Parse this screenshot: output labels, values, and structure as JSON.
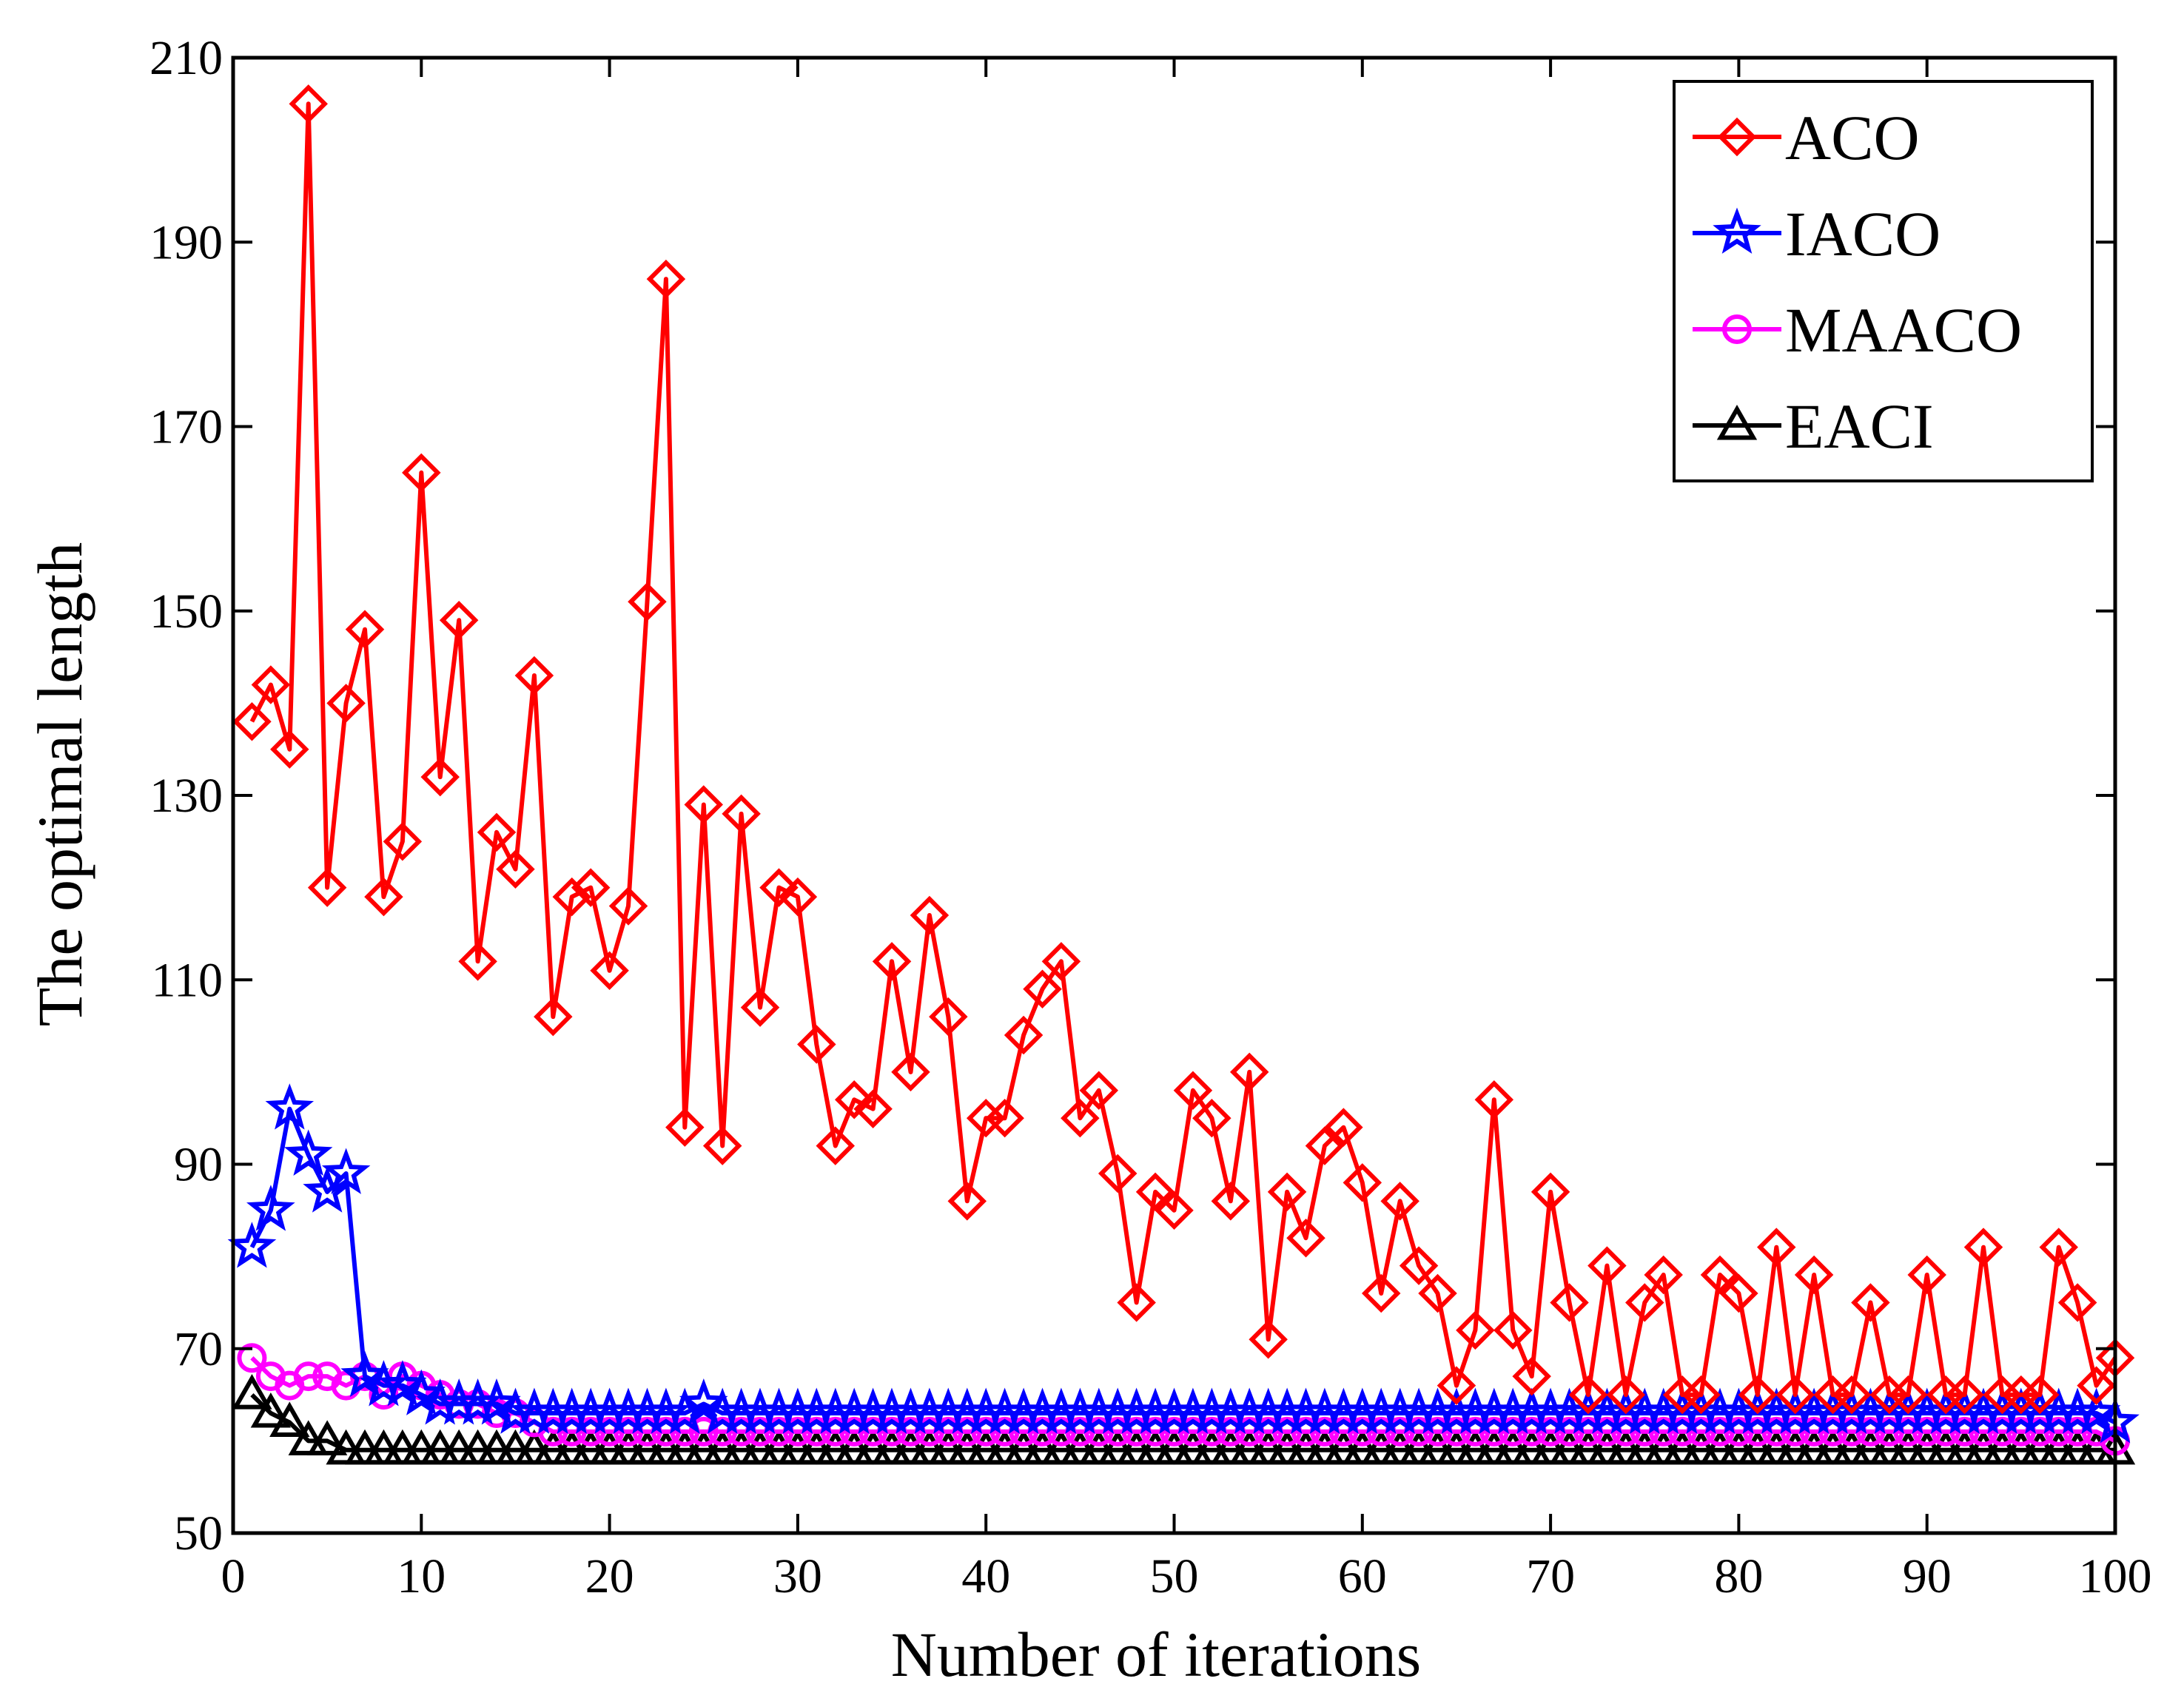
{
  "chart_data": {
    "type": "line",
    "title": "",
    "xlabel": "Number of iterations",
    "ylabel": "The optimal length",
    "xlim": [
      0,
      100
    ],
    "ylim": [
      50,
      210
    ],
    "xticks": [
      0,
      10,
      20,
      30,
      40,
      50,
      60,
      70,
      80,
      90,
      100
    ],
    "yticks": [
      50,
      70,
      90,
      110,
      130,
      150,
      170,
      190,
      210
    ],
    "grid": false,
    "legend_position": "top-right",
    "series": [
      {
        "name": "ACO",
        "color": "#ff0000",
        "marker": "diamond",
        "x": [
          1,
          2,
          3,
          4,
          5,
          6,
          7,
          8,
          9,
          10,
          11,
          12,
          13,
          14,
          15,
          16,
          17,
          18,
          19,
          20,
          21,
          22,
          23,
          24,
          25,
          26,
          27,
          28,
          29,
          30,
          31,
          32,
          33,
          34,
          35,
          36,
          37,
          38,
          39,
          40,
          41,
          42,
          43,
          44,
          45,
          46,
          47,
          48,
          49,
          50,
          51,
          52,
          53,
          54,
          55,
          56,
          57,
          58,
          59,
          60,
          61,
          62,
          63,
          64,
          65,
          66,
          67,
          68,
          69,
          70,
          71,
          72,
          73,
          74,
          75,
          76,
          77,
          78,
          79,
          80,
          81,
          82,
          83,
          84,
          85,
          86,
          87,
          88,
          89,
          90,
          91,
          92,
          93,
          94,
          95,
          96,
          97,
          98,
          99,
          100
        ],
        "values": [
          138,
          142,
          135,
          205,
          120,
          140,
          148,
          119,
          125,
          165,
          132,
          149,
          112,
          126,
          122,
          143,
          106,
          119,
          120,
          111,
          118,
          151,
          186,
          94,
          129,
          92,
          128,
          107,
          120,
          119,
          103,
          92,
          97,
          96,
          112,
          100,
          117,
          106,
          86,
          95,
          95,
          104,
          109,
          112,
          95,
          98,
          89,
          75,
          87,
          85,
          98,
          95,
          86,
          100,
          71,
          87,
          82,
          92,
          94,
          88,
          76,
          86,
          79,
          76,
          66,
          72,
          97,
          72,
          67,
          87,
          75,
          65,
          79,
          65,
          75,
          78,
          65,
          65,
          78,
          76,
          65,
          81,
          65,
          78,
          65,
          65,
          75,
          65,
          65,
          78,
          65,
          65,
          81,
          65,
          65,
          65,
          81,
          75,
          66,
          69
        ]
      },
      {
        "name": "IACO",
        "color": "#0000ff",
        "marker": "star",
        "x": [
          1,
          2,
          3,
          4,
          5,
          6,
          7,
          8,
          9,
          10,
          11,
          12,
          13,
          14,
          15,
          16,
          17,
          18,
          19,
          20,
          21,
          22,
          23,
          24,
          25,
          26,
          27,
          28,
          29,
          30,
          31,
          32,
          33,
          34,
          35,
          36,
          37,
          38,
          39,
          40,
          41,
          42,
          43,
          44,
          45,
          46,
          47,
          48,
          49,
          50,
          51,
          52,
          53,
          54,
          55,
          56,
          57,
          58,
          59,
          60,
          61,
          62,
          63,
          64,
          65,
          66,
          67,
          68,
          69,
          70,
          71,
          72,
          73,
          74,
          75,
          76,
          77,
          78,
          79,
          80,
          81,
          82,
          83,
          84,
          85,
          86,
          87,
          88,
          89,
          90,
          91,
          92,
          93,
          94,
          95,
          96,
          97,
          98,
          99,
          100
        ],
        "values": [
          81,
          85,
          96,
          91,
          87,
          89,
          67,
          66,
          66,
          65,
          64,
          64,
          64,
          64,
          63,
          63,
          63,
          63,
          63,
          63,
          63,
          63,
          63,
          63,
          64,
          63,
          63,
          63,
          63,
          63,
          63,
          63,
          63,
          63,
          63,
          63,
          63,
          63,
          63,
          63,
          63,
          63,
          63,
          63,
          63,
          63,
          63,
          63,
          63,
          63,
          63,
          63,
          63,
          63,
          63,
          63,
          63,
          63,
          63,
          63,
          63,
          63,
          63,
          63,
          63,
          63,
          63,
          63,
          63,
          63,
          63,
          63,
          63,
          63,
          63,
          63,
          63,
          63,
          63,
          63,
          63,
          63,
          63,
          63,
          63,
          63,
          63,
          63,
          63,
          63,
          63,
          63,
          63,
          63,
          63,
          63,
          63,
          63,
          63,
          62
        ]
      },
      {
        "name": "MAACO",
        "color": "#ff00ff",
        "marker": "circle",
        "x": [
          1,
          2,
          3,
          4,
          5,
          6,
          7,
          8,
          9,
          10,
          11,
          12,
          13,
          14,
          15,
          16,
          17,
          18,
          19,
          20,
          21,
          22,
          23,
          24,
          25,
          26,
          27,
          28,
          29,
          30,
          31,
          32,
          33,
          34,
          35,
          36,
          37,
          38,
          39,
          40,
          41,
          42,
          43,
          44,
          45,
          46,
          47,
          48,
          49,
          50,
          51,
          52,
          53,
          54,
          55,
          56,
          57,
          58,
          59,
          60,
          61,
          62,
          63,
          64,
          65,
          66,
          67,
          68,
          69,
          70,
          71,
          72,
          73,
          74,
          75,
          76,
          77,
          78,
          79,
          80,
          81,
          82,
          83,
          84,
          85,
          86,
          87,
          88,
          89,
          90,
          91,
          92,
          93,
          94,
          95,
          96,
          97,
          98,
          99,
          100
        ],
        "values": [
          69,
          67,
          66,
          67,
          67,
          66,
          67,
          65,
          67,
          66,
          65,
          64,
          64,
          63,
          63,
          62,
          61,
          61,
          61,
          61,
          61,
          61,
          61,
          61,
          61,
          61,
          61,
          61,
          61,
          61,
          61,
          61,
          61,
          61,
          61,
          61,
          61,
          61,
          61,
          61,
          61,
          61,
          61,
          61,
          61,
          61,
          61,
          61,
          61,
          61,
          61,
          61,
          61,
          61,
          61,
          61,
          61,
          61,
          61,
          61,
          61,
          61,
          61,
          61,
          61,
          61,
          61,
          61,
          61,
          61,
          61,
          61,
          61,
          61,
          61,
          61,
          61,
          61,
          61,
          61,
          61,
          61,
          61,
          61,
          61,
          61,
          61,
          61,
          61,
          61,
          61,
          61,
          61,
          61,
          61,
          61,
          61,
          61,
          61,
          60
        ]
      },
      {
        "name": "EACI",
        "color": "#000000",
        "marker": "triangle",
        "x": [
          1,
          2,
          3,
          4,
          5,
          6,
          7,
          8,
          9,
          10,
          11,
          12,
          13,
          14,
          15,
          16,
          17,
          18,
          19,
          20,
          21,
          22,
          23,
          24,
          25,
          26,
          27,
          28,
          29,
          30,
          31,
          32,
          33,
          34,
          35,
          36,
          37,
          38,
          39,
          40,
          41,
          42,
          43,
          44,
          45,
          46,
          47,
          48,
          49,
          50,
          51,
          52,
          53,
          54,
          55,
          56,
          57,
          58,
          59,
          60,
          61,
          62,
          63,
          64,
          65,
          66,
          67,
          68,
          69,
          70,
          71,
          72,
          73,
          74,
          75,
          76,
          77,
          78,
          79,
          80,
          81,
          82,
          83,
          84,
          85,
          86,
          87,
          88,
          89,
          90,
          91,
          92,
          93,
          94,
          95,
          96,
          97,
          98,
          99,
          100
        ],
        "values": [
          65,
          63,
          62,
          60,
          60,
          59,
          59,
          59,
          59,
          59,
          59,
          59,
          59,
          59,
          59,
          59,
          59,
          59,
          59,
          59,
          59,
          59,
          59,
          59,
          59,
          59,
          59,
          59,
          59,
          59,
          59,
          59,
          59,
          59,
          59,
          59,
          59,
          59,
          59,
          59,
          59,
          59,
          59,
          59,
          59,
          59,
          59,
          59,
          59,
          59,
          59,
          59,
          59,
          59,
          59,
          59,
          59,
          59,
          59,
          59,
          59,
          59,
          59,
          59,
          59,
          59,
          59,
          59,
          59,
          59,
          59,
          59,
          59,
          59,
          59,
          59,
          59,
          59,
          59,
          59,
          59,
          59,
          59,
          59,
          59,
          59,
          59,
          59,
          59,
          59,
          59,
          59,
          59,
          59,
          59,
          59,
          59,
          59,
          59,
          59
        ]
      }
    ]
  }
}
